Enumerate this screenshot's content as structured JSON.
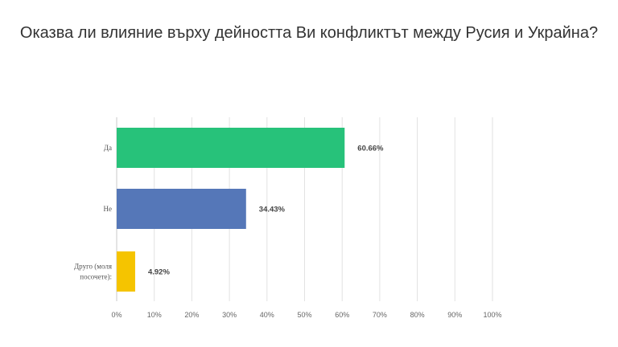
{
  "chart_data": {
    "type": "bar",
    "orientation": "horizontal",
    "title": "Оказва ли влияние върху дейността Ви конфликтът между Русия и Украйна?",
    "categories": [
      {
        "lines": [
          "Да"
        ]
      },
      {
        "lines": [
          "Не"
        ]
      },
      {
        "lines": [
          "Друго (моля",
          "посочете):"
        ]
      }
    ],
    "values": [
      60.66,
      34.43,
      4.92
    ],
    "value_labels": [
      "60.66%",
      "34.43%",
      "4.92%"
    ],
    "bar_colors": [
      "#27c27a",
      "#5577b8",
      "#f5c400"
    ],
    "xlim": [
      0,
      100
    ],
    "xticks": [
      "0%",
      "10%",
      "20%",
      "30%",
      "40%",
      "50%",
      "60%",
      "70%",
      "80%",
      "90%",
      "100%"
    ],
    "grid": true
  }
}
